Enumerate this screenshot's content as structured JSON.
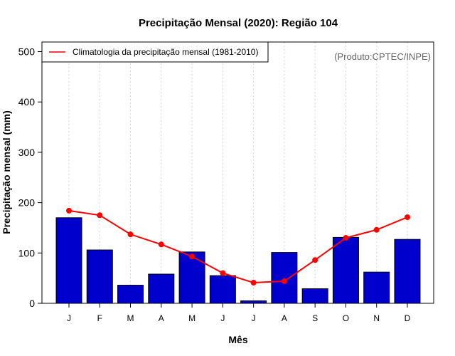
{
  "chart_data": {
    "type": "bar",
    "title": "Precipitação Mensal (2020): Região 104",
    "xlabel": "Mês",
    "ylabel": "Precipitação mensal (mm)",
    "ylim": [
      0,
      500
    ],
    "yticks": [
      0,
      100,
      200,
      300,
      400,
      500
    ],
    "categories": [
      "J",
      "F",
      "M",
      "A",
      "M",
      "J",
      "J",
      "A",
      "S",
      "O",
      "N",
      "D"
    ],
    "series": [
      {
        "name": "Precipitação mensal 2020",
        "type": "bar",
        "color": "#0000cd",
        "values": [
          170,
          106,
          36,
          58,
          102,
          55,
          5,
          101,
          29,
          131,
          62,
          127
        ]
      },
      {
        "name": "Climatologia da precipitação mensal (1981-2010)",
        "type": "line",
        "color": "#ff0000",
        "values": [
          184,
          175,
          137,
          117,
          93,
          60,
          41,
          44,
          86,
          130,
          146,
          171
        ]
      }
    ],
    "legend": {
      "position": "top-left",
      "entries": [
        "Climatologia da precipitação mensal (1981-2010)"
      ]
    },
    "annotation": "(Produto:CPTEC/INPE)",
    "grid": "vertical dotted"
  }
}
